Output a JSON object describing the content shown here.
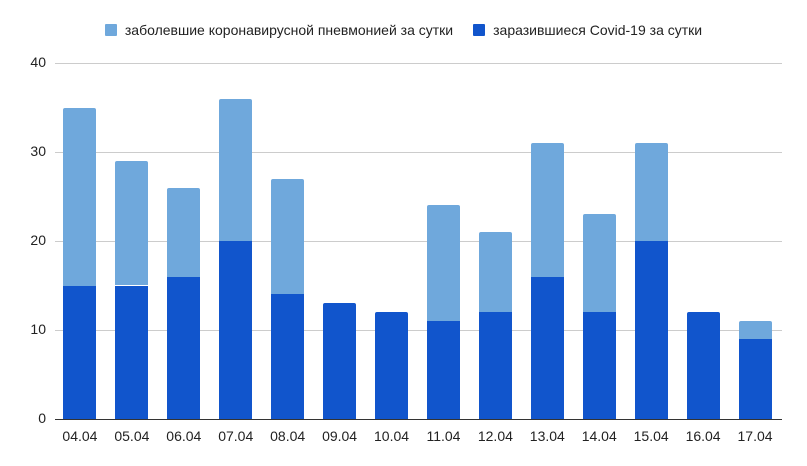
{
  "chart_data": {
    "type": "bar",
    "stacked": true,
    "title": "",
    "xlabel": "",
    "ylabel": "",
    "ylim": [
      0,
      40
    ],
    "yticks": [
      0,
      10,
      20,
      30,
      40
    ],
    "grid": true,
    "legend_position": "top",
    "categories": [
      "04.04",
      "05.04",
      "06.04",
      "07.04",
      "08.04",
      "09.04",
      "10.04",
      "11.04",
      "12.04",
      "13.04",
      "14.04",
      "15.04",
      "16.04",
      "17.04"
    ],
    "series": [
      {
        "name": "заразившиеся Covid-19 за сутки",
        "color": "#1155cc",
        "values": [
          15,
          15,
          16,
          20,
          14,
          13,
          12,
          11,
          12,
          16,
          12,
          20,
          12,
          9
        ]
      },
      {
        "name": "заболевшие коронавирусной пневмонией за сутки",
        "color": "#6fa8dc",
        "values": [
          20,
          14,
          10,
          16,
          13,
          0,
          0,
          13,
          9,
          15,
          11,
          11,
          0,
          2
        ]
      }
    ],
    "totals": [
      35,
      29,
      26,
      36,
      27,
      13,
      12,
      24,
      21,
      31,
      23,
      31,
      12,
      11
    ]
  },
  "legend": {
    "items": [
      {
        "label": "заболевшие коронавирусной пневмонией за сутки",
        "color": "#6fa8dc"
      },
      {
        "label": "заразившиеся Covid-19 за сутки",
        "color": "#1155cc"
      }
    ]
  },
  "axis": {
    "y_labels": [
      "40",
      "30",
      "20",
      "10",
      "0"
    ]
  }
}
